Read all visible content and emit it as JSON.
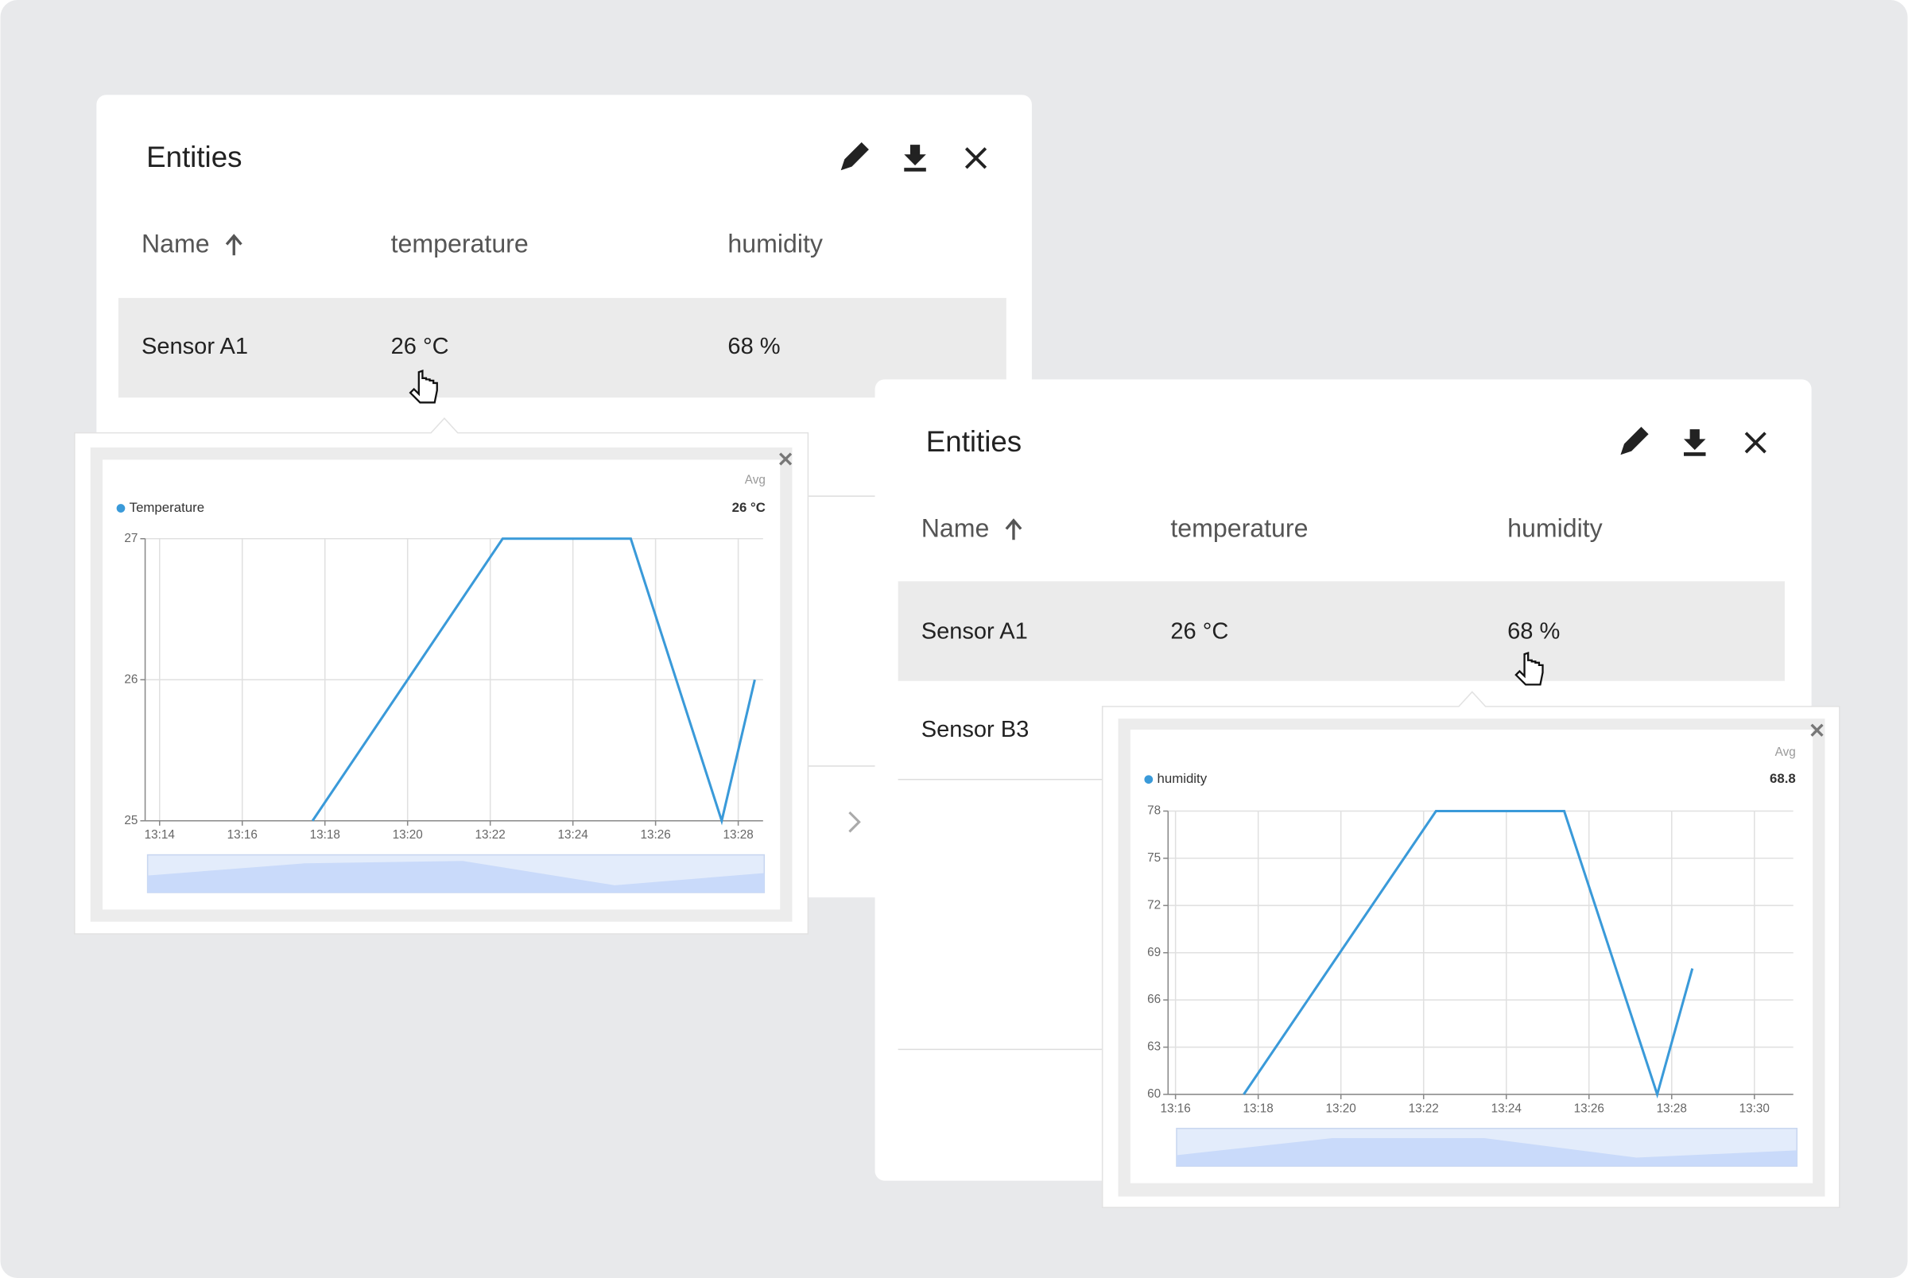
{
  "panels": [
    {
      "title": "Entities",
      "columns": [
        "Name",
        "temperature",
        "humidity"
      ],
      "rows": [
        [
          "Sensor A1",
          "26 °C",
          "68 %"
        ]
      ]
    },
    {
      "title": "Entities",
      "columns": [
        "Name",
        "temperature",
        "humidity"
      ],
      "rows": [
        [
          "Sensor A1",
          "26 °C",
          "68 %"
        ],
        [
          "Sensor B3"
        ]
      ]
    }
  ],
  "chart_data": [
    {
      "type": "line",
      "avg_label": "Avg",
      "avg_value": "26 °C",
      "grid": true,
      "x": [
        17.7,
        22.3,
        25.4,
        27.6,
        28.4
      ],
      "series": [
        {
          "name": "Temperature",
          "color": "#3a9ad9",
          "values": [
            25,
            27,
            27,
            25,
            26
          ]
        }
      ],
      "xlim": [
        13.65,
        28.6
      ],
      "xticks": [
        {
          "value": 14,
          "label": "13:14"
        },
        {
          "value": 16,
          "label": "13:16"
        },
        {
          "value": 18,
          "label": "13:18"
        },
        {
          "value": 20,
          "label": "13:20"
        },
        {
          "value": 22,
          "label": "13:22"
        },
        {
          "value": 24,
          "label": "13:24"
        },
        {
          "value": 26,
          "label": "13:26"
        },
        {
          "value": 28,
          "label": "13:28"
        }
      ],
      "ylim": [
        25,
        27
      ],
      "yticks": [
        25,
        26,
        27
      ]
    },
    {
      "type": "line",
      "avg_label": "Avg",
      "avg_value": "68.8",
      "grid": true,
      "x": [
        17.65,
        22.3,
        25.4,
        27.65,
        28.5
      ],
      "series": [
        {
          "name": "humidity",
          "color": "#3a9ad9",
          "values": [
            60,
            78,
            78,
            60,
            68
          ]
        }
      ],
      "xlim": [
        15.82,
        30.94
      ],
      "xticks": [
        {
          "value": 16,
          "label": "13:16"
        },
        {
          "value": 18,
          "label": "13:18"
        },
        {
          "value": 20,
          "label": "13:20"
        },
        {
          "value": 22,
          "label": "13:22"
        },
        {
          "value": 24,
          "label": "13:24"
        },
        {
          "value": 26,
          "label": "13:26"
        },
        {
          "value": 28,
          "label": "13:28"
        },
        {
          "value": 30,
          "label": "13:30"
        }
      ],
      "ylim": [
        60,
        78
      ],
      "yticks": [
        60,
        63,
        66,
        69,
        72,
        75,
        78
      ]
    }
  ]
}
